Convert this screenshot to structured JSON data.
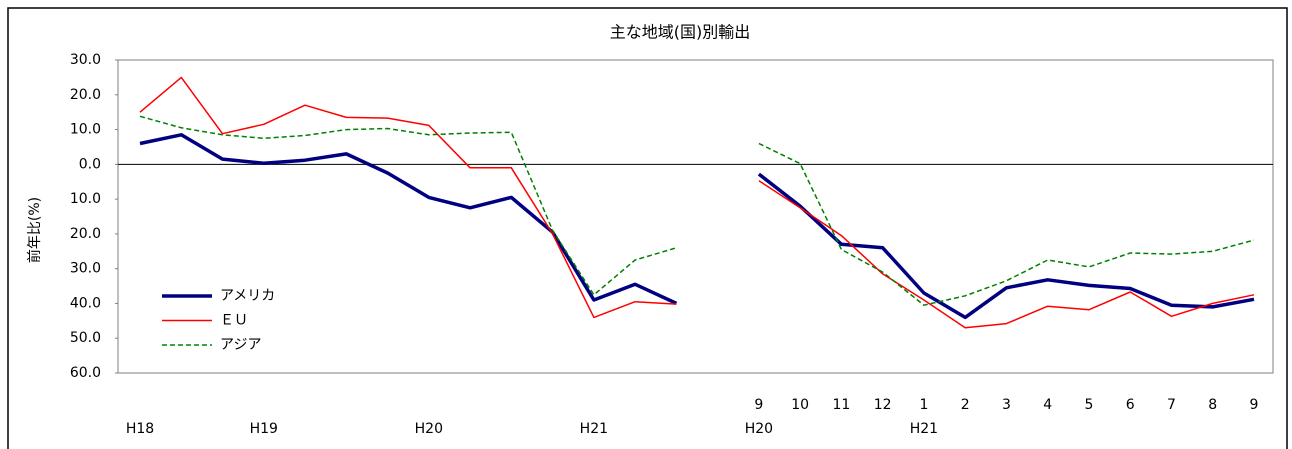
{
  "chart_data": {
    "type": "line",
    "title": "主な地域(国)別輸出",
    "y_label": "前年比(%)",
    "categories": [
      null,
      null,
      null,
      null,
      null,
      null,
      null,
      null,
      null,
      null,
      null,
      null,
      null,
      null,
      null,
      "9",
      "10",
      "11",
      "12",
      "1",
      "2",
      "3",
      "4",
      "5",
      "6",
      "7",
      "8",
      "9"
    ],
    "category_groups": [
      "H18",
      null,
      null,
      "H19",
      null,
      null,
      null,
      "H20",
      null,
      null,
      null,
      "H21",
      null,
      null,
      null,
      "H20",
      null,
      null,
      null,
      "H21",
      null,
      null,
      null,
      null,
      null,
      null,
      null,
      null
    ],
    "series": [
      {
        "name": "アメリカ",
        "color": "#000080",
        "width": 3.5,
        "style": "solid",
        "values": [
          6.0,
          8.5,
          1.5,
          0.3,
          1.2,
          3.0,
          -2.5,
          -9.5,
          -12.5,
          -9.5,
          -19.5,
          -39.0,
          -34.5,
          -40.0,
          null,
          -2.8,
          -12.0,
          -23.0,
          -24.0,
          -37.0,
          -44.0,
          -35.5,
          -33.2,
          -34.8,
          -35.7,
          -40.5,
          -41.0,
          -38.8
        ]
      },
      {
        "name": "ＥＵ",
        "color": "#ff0000",
        "width": 1.5,
        "style": "solid",
        "values": [
          15.0,
          25.0,
          8.8,
          11.5,
          17.0,
          13.5,
          13.3,
          11.2,
          -1.0,
          -1.0,
          -20.0,
          -44.0,
          -39.5,
          -40.2,
          null,
          -4.7,
          -12.5,
          -20.5,
          -31.5,
          -39.0,
          -47.0,
          -45.8,
          -40.8,
          -41.8,
          -36.7,
          -43.7,
          -40.0,
          -37.5
        ]
      },
      {
        "name": "アジア",
        "color": "#008000",
        "width": 1.5,
        "style": "dashed",
        "values": [
          13.8,
          10.5,
          8.5,
          7.5,
          8.3,
          10.0,
          10.3,
          8.5,
          9.0,
          9.2,
          -19.0,
          -37.5,
          -27.5,
          -24.0,
          null,
          6.0,
          0.2,
          -24.5,
          -31.0,
          -40.5,
          -37.8,
          -33.5,
          -27.5,
          -29.5,
          -25.5,
          -25.8,
          -25.0,
          -21.8
        ]
      }
    ],
    "ylim": [
      -60,
      30
    ],
    "yticks": [
      {
        "value": -60,
        "label": "60.0"
      },
      {
        "value": -50,
        "label": "50.0"
      },
      {
        "value": -40,
        "label": "40.0"
      },
      {
        "value": -30,
        "label": "30.0"
      },
      {
        "value": -20,
        "label": "20.0"
      },
      {
        "value": -10,
        "label": "10.0"
      },
      {
        "value": 0,
        "label": "0.0"
      },
      {
        "value": 10,
        "label": "10.0"
      },
      {
        "value": 20,
        "label": "20.0"
      },
      {
        "value": 30,
        "label": "30.0"
      }
    ],
    "legend": "lower left"
  }
}
